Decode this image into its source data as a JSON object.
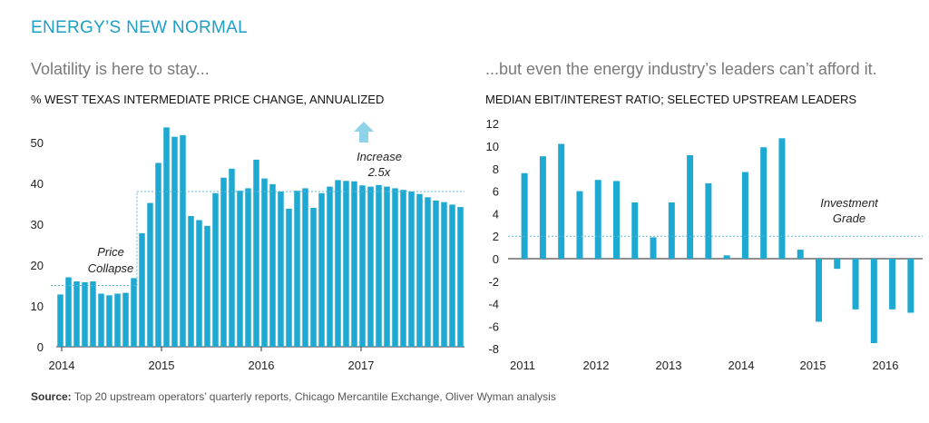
{
  "header": {
    "title": "ENERGY’S NEW NORMAL",
    "left_subtitle": "Volatility is here to stay...",
    "right_subtitle": "...but even the energy industry’s leaders can’t afford it."
  },
  "source": {
    "label": "Source:",
    "text": "Top 20 upstream operators’ quarterly reports, Chicago Mercantile Exchange, Oliver Wyman analysis"
  },
  "colors": {
    "bar": "#1ea9d2",
    "title": "#1d9fc6",
    "arrow": "#8fd3ea",
    "guide": "#5bb8d6"
  },
  "chart_data": [
    {
      "type": "bar",
      "title": "% WEST TEXAS INTERMEDIATE PRICE CHANGE, ANNUALIZED",
      "x_tick_labels": [
        "2014",
        "2015",
        "2016",
        "2017"
      ],
      "y_ticks": [
        0,
        10,
        20,
        30,
        40,
        50
      ],
      "ylim": [
        0,
        56
      ],
      "values": [
        12.8,
        17,
        16,
        15.8,
        16,
        13,
        12.6,
        13,
        13.2,
        16.8,
        27.8,
        35.2,
        45,
        53.7,
        51.4,
        51.8,
        32,
        31,
        29.6,
        37.6,
        41.4,
        43.6,
        38.2,
        38.8,
        45.8,
        41.2,
        39.8,
        38,
        33.8,
        38.2,
        38.8,
        34,
        37.6,
        39.2,
        40.8,
        40.6,
        40.5,
        39.5,
        39.2,
        39.6,
        39.2,
        38.8,
        38.4,
        38,
        37.4,
        36.6,
        35.8,
        35.4,
        34.8,
        34.2
      ],
      "reference_lines": [
        {
          "value": 15,
          "label_lines": [
            "Price",
            "Collapse"
          ]
        },
        {
          "value": 38,
          "label_lines": [
            "Increase",
            "2.5x"
          ]
        }
      ],
      "annotation": "Increase 2.5x",
      "grid": false
    },
    {
      "type": "bar",
      "title": "MEDIAN EBIT/INTEREST RATIO; SELECTED UPSTREAM LEADERS",
      "x_tick_labels": [
        "2011",
        "2012",
        "2013",
        "2014",
        "2015",
        "2016"
      ],
      "y_ticks": [
        12,
        10,
        8,
        6,
        4,
        2,
        0,
        -2,
        -4,
        -6,
        -8
      ],
      "ylim": [
        -8.5,
        12.5
      ],
      "values": [
        7.6,
        9.1,
        10.2,
        6.0,
        7.0,
        6.9,
        5.0,
        1.9,
        5.0,
        9.2,
        6.7,
        0.3,
        7.7,
        9.9,
        10.7,
        0.8,
        -5.6,
        -0.9,
        -4.5,
        -7.5,
        -4.5,
        -4.8
      ],
      "reference_lines": [
        {
          "value": 2,
          "label_lines": [
            "Investment",
            "Grade"
          ]
        }
      ],
      "grid": false
    }
  ]
}
